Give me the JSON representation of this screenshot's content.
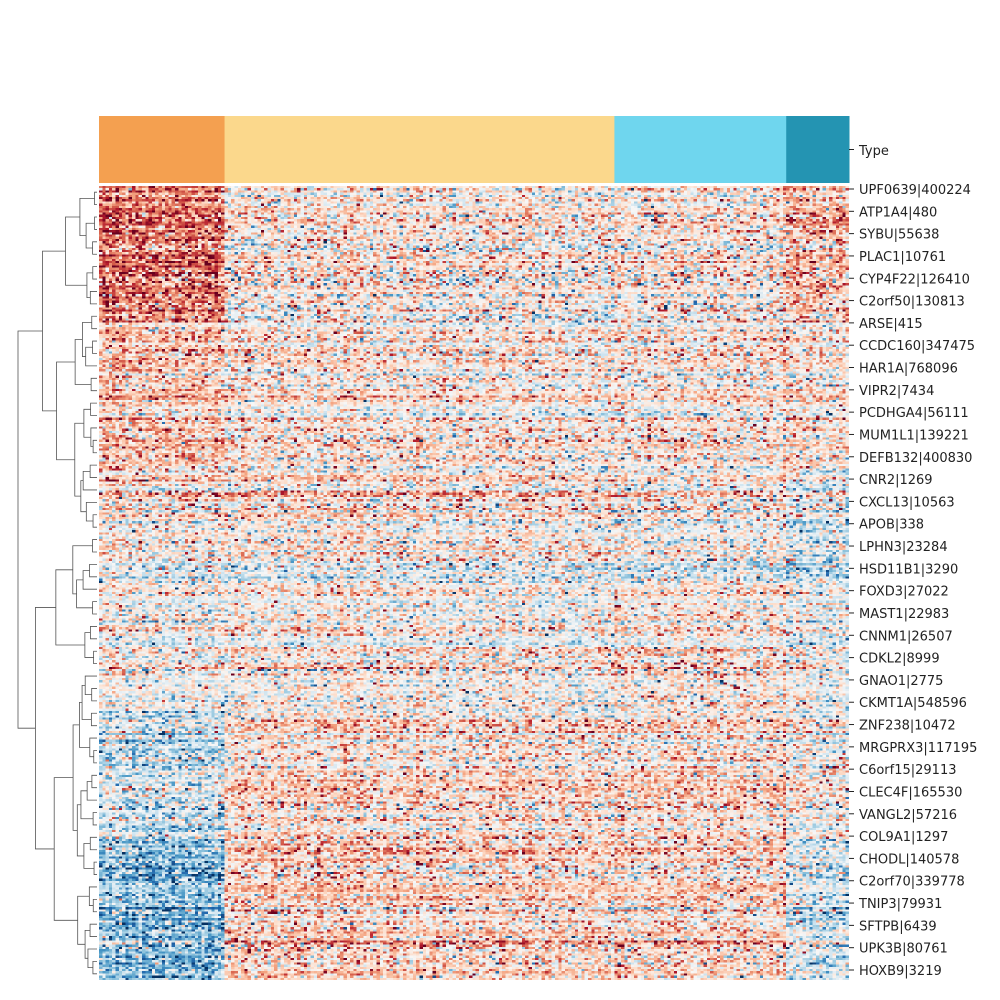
{
  "chart_data": {
    "type": "heatmap",
    "title": "",
    "xlabel": "",
    "ylabel": "",
    "col_annotation": {
      "label": "Type",
      "groups": [
        {
          "color": "#f4a050",
          "count": 38
        },
        {
          "color": "#fbd88c",
          "count": 118
        },
        {
          "color": "#6fd6ee",
          "count": 52
        },
        {
          "color": "#2494b2",
          "count": 19
        }
      ]
    },
    "row_labels": [
      "UPF0639|400224",
      "ATP1A4|480",
      "SYBU|55638",
      "PLAC1|10761",
      "CYP4F22|126410",
      "C2orf50|130813",
      "ARSE|415",
      "CCDC160|347475",
      "HAR1A|768096",
      "VIPR2|7434",
      "PCDHGA4|56111",
      "MUM1L1|139221",
      "DEFB132|400830",
      "CNR2|1269",
      "CXCL13|10563",
      "APOB|338",
      "LPHN3|23284",
      "HSD11B1|3290",
      "FOXD3|27022",
      "MAST1|22983",
      "CNNM1|26507",
      "CDKL2|8999",
      "GNAO1|2775",
      "CKMT1A|548596",
      "ZNF238|10472",
      "MRGPRX3|117195",
      "C6orf15|29113",
      "CLEC4F|165530",
      "VANGL2|57216",
      "COL9A1|1297",
      "CHODL|140578",
      "C2orf70|339778",
      "TNIP3|79931",
      "SFTPB|6439",
      "UPK3B|80761",
      "HOXB9|3219"
    ],
    "n_rows": 360,
    "n_cols": 227,
    "colormap": "RdBu_r",
    "color_range": [
      -3,
      3
    ],
    "row_dendrogram": true,
    "col_dendrogram": false,
    "blocks": [
      {
        "rows": [
          0,
          0.17
        ],
        "group_means": [
          1.6,
          0.25,
          0.25,
          0.9
        ]
      },
      {
        "rows": [
          0.17,
          0.36
        ],
        "group_means": [
          0.7,
          0.2,
          0.2,
          0.3
        ]
      },
      {
        "rows": [
          0.36,
          0.49
        ],
        "group_means": [
          0.2,
          0.25,
          0.05,
          -0.3
        ]
      },
      {
        "rows": [
          0.49,
          0.66
        ],
        "group_means": [
          0.1,
          0.15,
          0.3,
          0.0
        ]
      },
      {
        "rows": [
          0.66,
          0.82
        ],
        "group_means": [
          -0.5,
          0.45,
          0.5,
          0.1
        ]
      },
      {
        "rows": [
          0.82,
          1.0
        ],
        "group_means": [
          -1.3,
          0.5,
          0.45,
          -0.5
        ]
      }
    ]
  }
}
